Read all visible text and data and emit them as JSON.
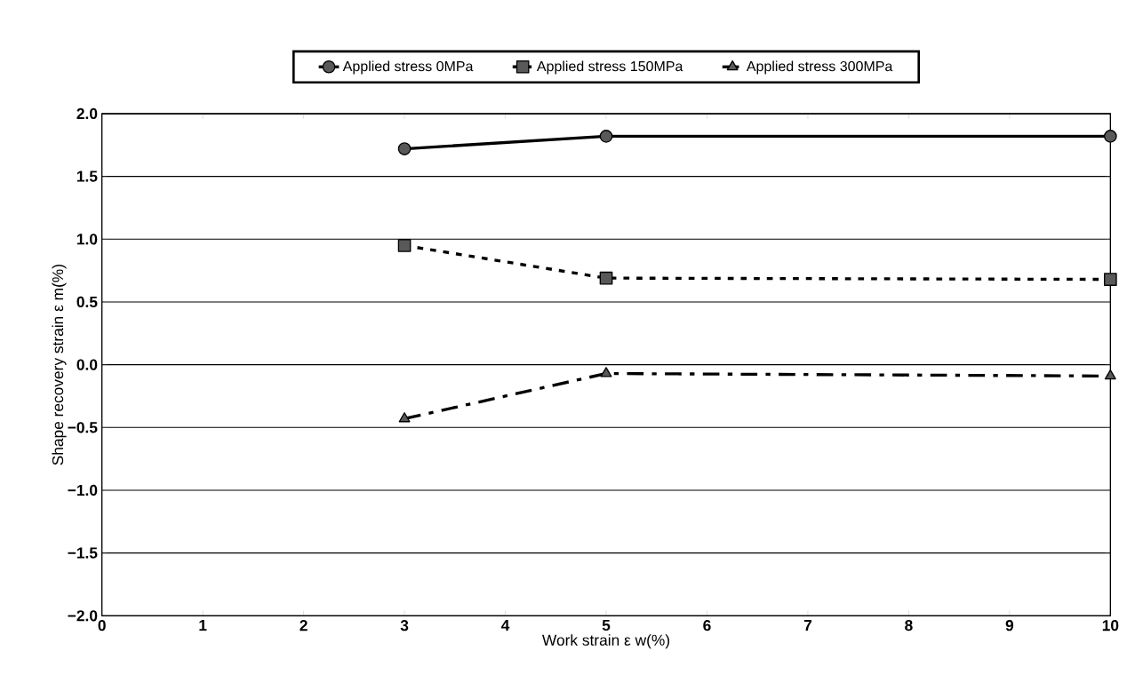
{
  "chart_data": {
    "type": "line",
    "xlabel": "Work strain  ε w(%)",
    "ylabel": "Shape recovery strain  ε m(%)",
    "x": [
      3,
      5,
      10
    ],
    "series": [
      {
        "name": "Applied stress 0MPa",
        "color": "#000000",
        "values": [
          1.72,
          1.82,
          1.82
        ],
        "marker": "circle",
        "line_style": "solid"
      },
      {
        "name": "Applied stress 150MPa",
        "color": "#000000",
        "values": [
          0.95,
          0.69,
          0.68
        ],
        "marker": "square",
        "line_style": "dotted"
      },
      {
        "name": "Applied stress 300MPa",
        "color": "#000000",
        "values": [
          -0.43,
          -0.07,
          -0.09
        ],
        "marker": "triangle",
        "line_style": "dashed"
      }
    ],
    "xlim": [
      0,
      10
    ],
    "xticks": [
      0,
      1,
      2,
      3,
      4,
      5,
      6,
      7,
      8,
      9,
      10
    ],
    "ylim": [
      -2,
      2
    ],
    "yticks": [
      {
        "value": -2,
        "label": "−2.0"
      },
      {
        "value": -1.5,
        "label": "−1.5"
      },
      {
        "value": -1,
        "label": "−1.0"
      },
      {
        "value": -0.5,
        "label": "−0.5"
      },
      {
        "value": 0,
        "label": "0.0"
      },
      {
        "value": 0.5,
        "label": "0.5"
      },
      {
        "value": 1,
        "label": "1.0"
      },
      {
        "value": 1.5,
        "label": "1.5"
      },
      {
        "value": 2,
        "label": "2.0"
      }
    ],
    "grid": "y",
    "legend": "top"
  }
}
